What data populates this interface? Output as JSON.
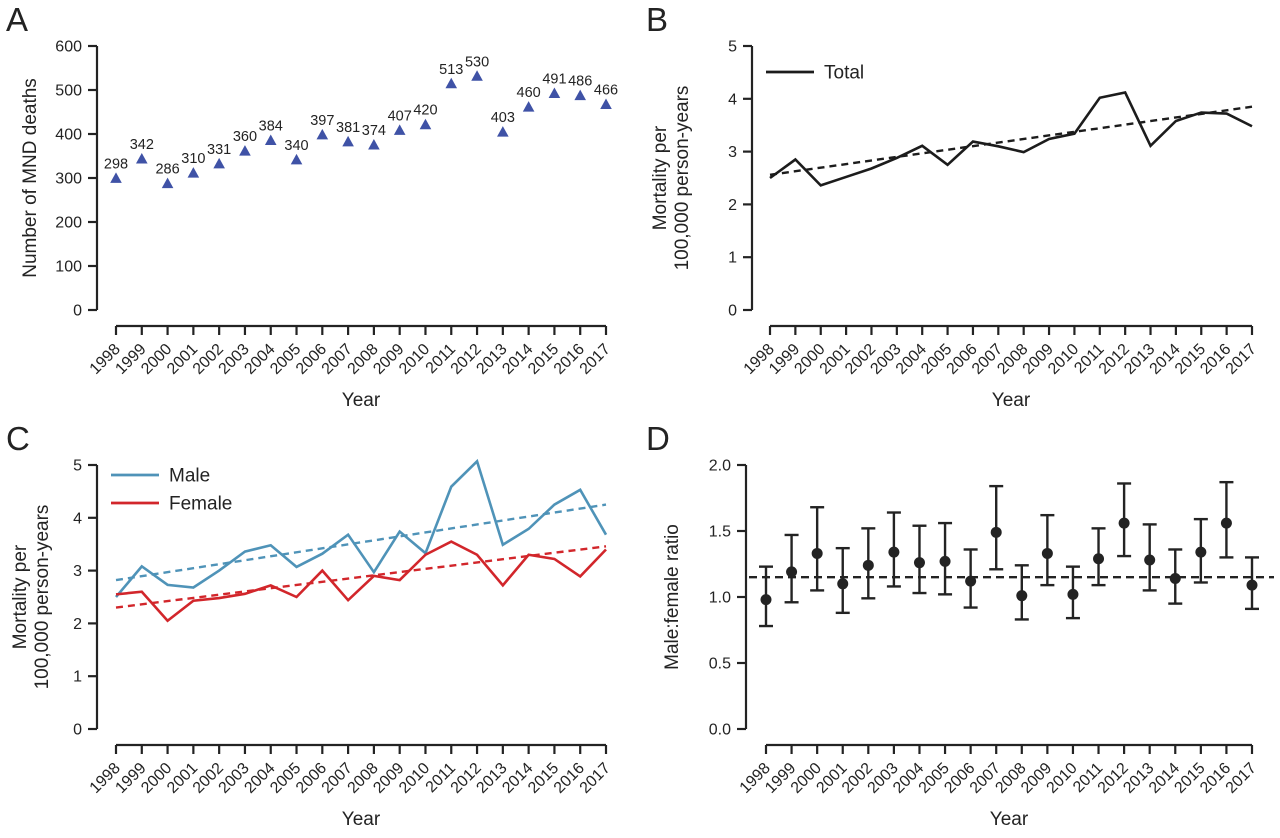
{
  "figure": {
    "background": "#ffffff",
    "ink_color": "#232323",
    "panel_letters": [
      "A",
      "B",
      "C",
      "D"
    ]
  },
  "chart_data": [
    {
      "panel": "A",
      "type": "scatter",
      "marker": "triangle",
      "marker_color": "#3f52a6",
      "xlabel": "Year",
      "ylabel_lines": [
        "Number of MND deaths"
      ],
      "ylim": [
        0,
        600
      ],
      "yticks": [
        0,
        100,
        200,
        300,
        400,
        500,
        600
      ],
      "ytick_labels": [
        "0",
        "100",
        "200",
        "300",
        "400",
        "500",
        "600"
      ],
      "categories": [
        "1998",
        "1999",
        "2000",
        "2001",
        "2002",
        "2003",
        "2004",
        "2005",
        "2006",
        "2007",
        "2008",
        "2009",
        "2010",
        "2011",
        "2012",
        "2013",
        "2014",
        "2015",
        "2016",
        "2017"
      ],
      "values": [
        298,
        342,
        286,
        310,
        331,
        360,
        384,
        340,
        397,
        381,
        374,
        407,
        420,
        513,
        530,
        403,
        460,
        491,
        486,
        466
      ],
      "show_point_labels": true,
      "grid": false,
      "legend": null
    },
    {
      "panel": "B",
      "type": "line",
      "xlabel": "Year",
      "ylabel_lines": [
        "Mortality per",
        "100,000 person-years"
      ],
      "ylim": [
        0,
        5
      ],
      "yticks": [
        0,
        1,
        2,
        3,
        4,
        5
      ],
      "ytick_labels": [
        "0",
        "1",
        "2",
        "3",
        "4",
        "5"
      ],
      "categories": [
        "1998",
        "1999",
        "2000",
        "2001",
        "2002",
        "2003",
        "2004",
        "2005",
        "2006",
        "2007",
        "2008",
        "2009",
        "2010",
        "2011",
        "2012",
        "2013",
        "2014",
        "2015",
        "2016",
        "2017"
      ],
      "legend_position": "top-left",
      "series": [
        {
          "name": "Total",
          "color": "#1c1c1c",
          "values": [
            2.5,
            2.85,
            2.36,
            2.52,
            2.68,
            2.88,
            3.11,
            2.75,
            3.19,
            3.1,
            2.99,
            3.24,
            3.34,
            4.02,
            4.12,
            3.11,
            3.58,
            3.74,
            3.72,
            3.48
          ],
          "trend": {
            "style": "dashed",
            "start": 2.56,
            "end": 3.85
          }
        }
      ],
      "grid": false
    },
    {
      "panel": "C",
      "type": "line",
      "xlabel": "Year",
      "ylabel_lines": [
        "Mortality per",
        "100,000 person-years"
      ],
      "ylim": [
        0,
        5
      ],
      "yticks": [
        0,
        1,
        2,
        3,
        4,
        5
      ],
      "ytick_labels": [
        "0",
        "1",
        "2",
        "3",
        "4",
        "5"
      ],
      "categories": [
        "1998",
        "1999",
        "2000",
        "2001",
        "2002",
        "2003",
        "2004",
        "2005",
        "2006",
        "2007",
        "2008",
        "2009",
        "2010",
        "2011",
        "2012",
        "2013",
        "2014",
        "2015",
        "2016",
        "2017"
      ],
      "legend_position": "top-left",
      "series": [
        {
          "name": "Male",
          "color": "#4f93b8",
          "values": [
            2.5,
            3.08,
            2.73,
            2.68,
            3.0,
            3.36,
            3.48,
            3.07,
            3.32,
            3.68,
            2.97,
            3.74,
            3.33,
            4.59,
            5.07,
            3.49,
            3.79,
            4.25,
            4.53,
            3.68
          ],
          "trend": {
            "style": "dashed",
            "start": 2.82,
            "end": 4.25
          }
        },
        {
          "name": "Female",
          "color": "#d2262b",
          "values": [
            2.55,
            2.6,
            2.05,
            2.43,
            2.48,
            2.56,
            2.72,
            2.5,
            3.0,
            2.44,
            2.9,
            2.82,
            3.3,
            3.55,
            3.3,
            2.72,
            3.3,
            3.22,
            2.89,
            3.4
          ],
          "trend": {
            "style": "dashed",
            "start": 2.3,
            "end": 3.46
          }
        }
      ],
      "grid": false
    },
    {
      "panel": "D",
      "type": "errorbar",
      "point_color": "#232323",
      "xlabel": "Year",
      "ylabel_lines": [
        "Male:female ratio"
      ],
      "ylim": [
        0,
        2
      ],
      "yticks": [
        0,
        0.5,
        1,
        1.5,
        2
      ],
      "ytick_labels": [
        "0.0",
        "0.5",
        "1.0",
        "1.5",
        "2.0"
      ],
      "categories": [
        "1998",
        "1999",
        "2000",
        "2001",
        "2002",
        "2003",
        "2004",
        "2005",
        "2006",
        "2007",
        "2008",
        "2009",
        "2010",
        "2011",
        "2012",
        "2013",
        "2014",
        "2015",
        "2016",
        "2017"
      ],
      "points": {
        "y": [
          0.98,
          1.19,
          1.33,
          1.1,
          1.24,
          1.34,
          1.26,
          1.27,
          1.12,
          1.49,
          1.01,
          1.33,
          1.02,
          1.29,
          1.56,
          1.28,
          1.14,
          1.34,
          1.56,
          1.09
        ],
        "lo": [
          0.78,
          0.96,
          1.05,
          0.88,
          0.99,
          1.08,
          1.03,
          1.02,
          0.92,
          1.21,
          0.83,
          1.09,
          0.84,
          1.09,
          1.31,
          1.05,
          0.95,
          1.11,
          1.3,
          0.91
        ],
        "hi": [
          1.23,
          1.47,
          1.68,
          1.37,
          1.52,
          1.64,
          1.54,
          1.56,
          1.36,
          1.84,
          1.24,
          1.62,
          1.23,
          1.52,
          1.86,
          1.55,
          1.36,
          1.59,
          1.87,
          1.3
        ]
      },
      "reference_line": {
        "value": 1.15,
        "style": "dashed"
      },
      "grid": false
    }
  ]
}
